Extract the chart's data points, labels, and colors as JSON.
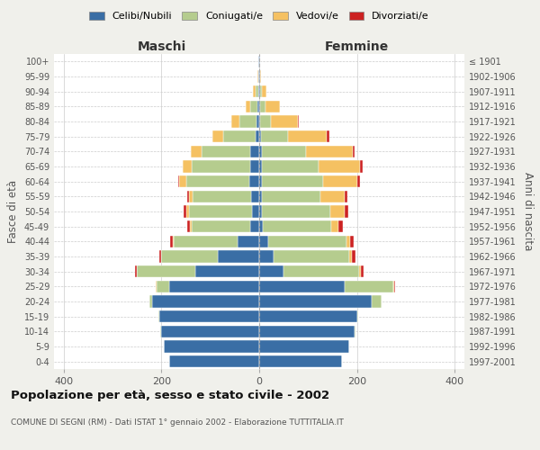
{
  "age_groups": [
    "0-4",
    "5-9",
    "10-14",
    "15-19",
    "20-24",
    "25-29",
    "30-34",
    "35-39",
    "40-44",
    "45-49",
    "50-54",
    "55-59",
    "60-64",
    "65-69",
    "70-74",
    "75-79",
    "80-84",
    "85-89",
    "90-94",
    "95-99",
    "100+"
  ],
  "birth_years": [
    "1997-2001",
    "1992-1996",
    "1987-1991",
    "1982-1986",
    "1977-1981",
    "1972-1976",
    "1967-1971",
    "1962-1966",
    "1957-1961",
    "1952-1956",
    "1947-1951",
    "1942-1946",
    "1937-1941",
    "1932-1936",
    "1927-1931",
    "1922-1926",
    "1917-1921",
    "1912-1916",
    "1907-1911",
    "1902-1906",
    "≤ 1901"
  ],
  "colors": {
    "celibi": "#3a6ea5",
    "coniugati": "#b5cc8e",
    "vedovi": "#f5c162",
    "divorziati": "#cc2222"
  },
  "males": {
    "celibi": [
      185,
      195,
      200,
      205,
      220,
      185,
      130,
      85,
      45,
      18,
      14,
      16,
      20,
      18,
      18,
      8,
      5,
      3,
      2,
      1,
      1
    ],
    "coniugati": [
      0,
      0,
      2,
      2,
      5,
      25,
      120,
      115,
      130,
      120,
      130,
      120,
      130,
      120,
      100,
      65,
      35,
      15,
      5,
      1,
      0
    ],
    "vedovi": [
      0,
      0,
      0,
      0,
      0,
      1,
      1,
      1,
      2,
      3,
      5,
      8,
      14,
      18,
      22,
      22,
      18,
      10,
      5,
      1,
      0
    ],
    "divorziati": [
      0,
      0,
      0,
      0,
      0,
      1,
      3,
      4,
      5,
      6,
      6,
      4,
      2,
      0,
      0,
      0,
      0,
      0,
      0,
      0,
      0
    ]
  },
  "females": {
    "nubili": [
      170,
      185,
      195,
      200,
      230,
      175,
      50,
      30,
      18,
      8,
      5,
      5,
      6,
      6,
      6,
      4,
      2,
      2,
      2,
      1,
      1
    ],
    "coniugate": [
      0,
      0,
      2,
      3,
      20,
      100,
      155,
      155,
      160,
      140,
      140,
      120,
      125,
      115,
      90,
      55,
      22,
      10,
      4,
      1,
      0
    ],
    "vedove": [
      0,
      0,
      0,
      0,
      1,
      2,
      3,
      5,
      8,
      15,
      30,
      50,
      70,
      85,
      95,
      80,
      55,
      30,
      8,
      1,
      0
    ],
    "divorziate": [
      0,
      0,
      0,
      0,
      0,
      2,
      6,
      8,
      8,
      8,
      8,
      5,
      5,
      5,
      5,
      5,
      2,
      0,
      0,
      0,
      0
    ]
  },
  "xlim": 420,
  "title": "Popolazione per età, sesso e stato civile - 2002",
  "subtitle": "COMUNE DI SEGNI (RM) - Dati ISTAT 1° gennaio 2002 - Elaborazione TUTTITALIA.IT",
  "ylabel": "Fasce di età",
  "ylabel_right": "Anni di nascita",
  "xlabel_left": "Maschi",
  "xlabel_right": "Femmine",
  "bg_color": "#f0f0eb",
  "plot_bg": "#ffffff"
}
